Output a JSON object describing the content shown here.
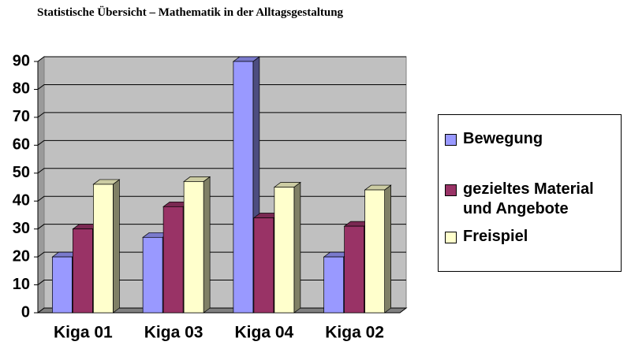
{
  "chart_data": {
    "type": "bar3d",
    "title": "Statistische Übersicht – Mathematik in der Alltagsgestaltung",
    "categories": [
      "Kiga 01",
      "Kiga 03",
      "Kiga 04",
      "Kiga 02"
    ],
    "series": [
      {
        "name": "Bewegung",
        "color": "#9999ff",
        "values": [
          20,
          27,
          90,
          20
        ]
      },
      {
        "name": "gezieltes Material und Angebote",
        "color": "#993366",
        "values": [
          30,
          38,
          34,
          31
        ]
      },
      {
        "name": "Freispiel",
        "color": "#ffffcc",
        "values": [
          46,
          47,
          45,
          44
        ]
      }
    ],
    "ylim": [
      0,
      90
    ],
    "yticks": [
      0,
      10,
      20,
      30,
      40,
      50,
      60,
      70,
      80,
      90
    ],
    "grid": true,
    "legend": "right"
  }
}
